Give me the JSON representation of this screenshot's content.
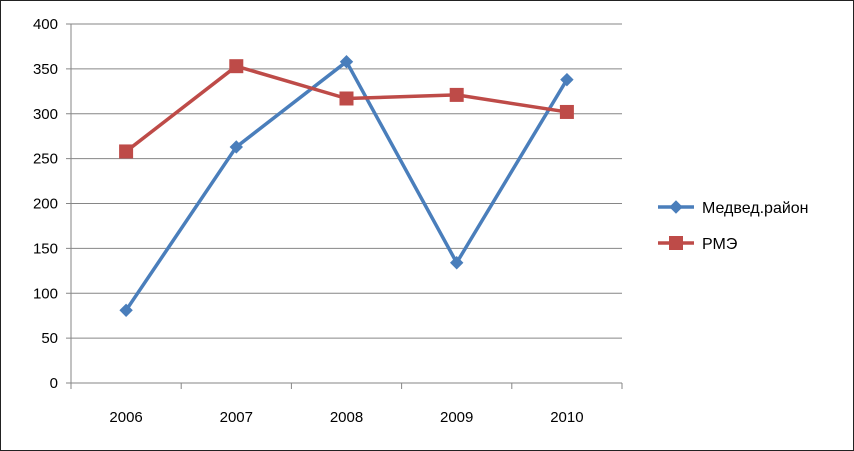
{
  "chart_data": {
    "type": "line",
    "title": "",
    "xlabel": "",
    "ylabel": "",
    "categories": [
      "2006",
      "2007",
      "2008",
      "2009",
      "2010"
    ],
    "series": [
      {
        "name": "Медвед.район",
        "values": [
          81,
          263,
          358,
          134,
          338
        ],
        "color": "#4a7ebb",
        "marker": "diamond"
      },
      {
        "name": "РМЭ",
        "values": [
          258,
          353,
          317,
          321,
          302
        ],
        "color": "#be4b48",
        "marker": "square"
      }
    ],
    "ylim": [
      0,
      400
    ],
    "yticks": [
      0,
      50,
      100,
      150,
      200,
      250,
      300,
      350,
      400
    ],
    "grid": "horizontal",
    "legend_position": "right"
  }
}
